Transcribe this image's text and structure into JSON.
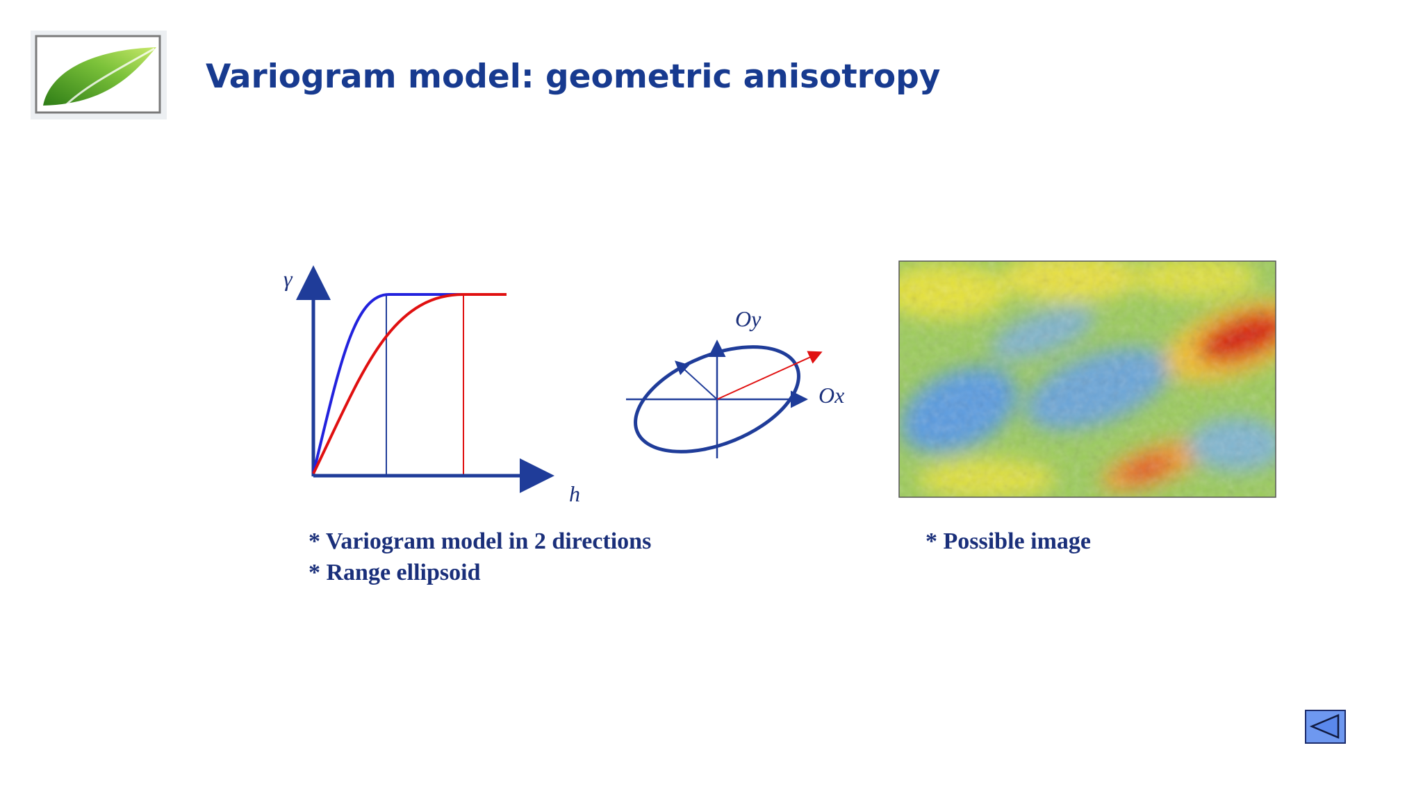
{
  "header": {
    "title": "Variogram model: geometric anisotropy"
  },
  "variogram": {
    "y_label": "γ",
    "x_label": "h"
  },
  "ellipse": {
    "y_label": "Oy",
    "x_label": "Ox"
  },
  "captions": {
    "left": [
      "* Variogram model in 2 directions",
      "* Range ellipsoid"
    ],
    "right": "* Possible image"
  }
}
